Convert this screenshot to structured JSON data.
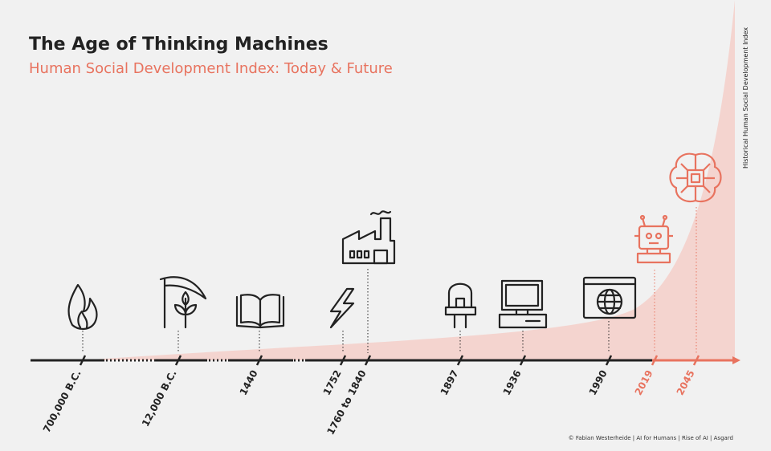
{
  "header": {
    "title": "The Age of Thinking Machines",
    "subtitle": "Human Social Development Index: Today & Future"
  },
  "axis_label": "Historical Human Social Development Index",
  "timeline": {
    "events": [
      {
        "label": "700,000 B.C.",
        "color": "#222222"
      },
      {
        "label": "12,000 B.C.",
        "color": "#222222"
      },
      {
        "label": "1440",
        "color": "#222222"
      },
      {
        "label": "1752",
        "color": "#222222"
      },
      {
        "label": "1760 to 1840",
        "color": "#222222"
      },
      {
        "label": "1897",
        "color": "#222222"
      },
      {
        "label": "1936",
        "color": "#222222"
      },
      {
        "label": "1990",
        "color": "#222222"
      },
      {
        "label": "2019",
        "color": "#e8735f"
      },
      {
        "label": "2045",
        "color": "#e8735f"
      }
    ]
  },
  "footer": "© Fabian Westerheide | AI for Humans | Rise of AI | Asgard"
}
